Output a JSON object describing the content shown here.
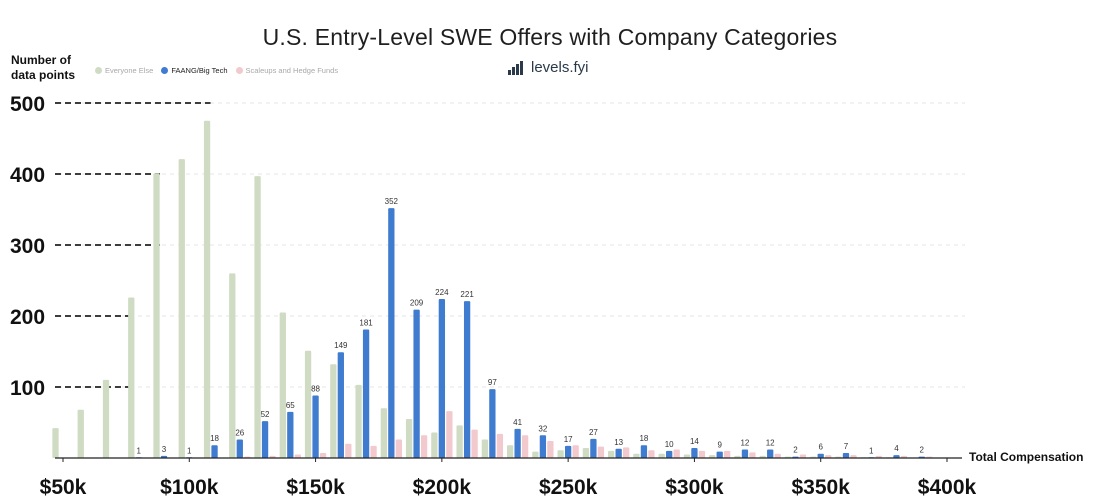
{
  "chart_data": {
    "type": "bar",
    "title": "U.S. Entry-Level SWE Offers with Company Categories",
    "ylabel": "Number of data points",
    "xlabel": "Total Compensation",
    "watermark": "levels.fyi",
    "ylim": [
      0,
      510
    ],
    "xlim": [
      50000,
      402000
    ],
    "bin_width": 10000,
    "y_ticks": [
      100,
      200,
      300,
      400,
      500
    ],
    "y_tick_labels": [
      "100",
      "200",
      "300",
      "400",
      "500"
    ],
    "x_ticks": [
      50000,
      100000,
      150000,
      200000,
      250000,
      300000,
      350000,
      400000
    ],
    "x_tick_labels": [
      "$50k",
      "$100k",
      "$150k",
      "$200k",
      "$250k",
      "$300k",
      "$350k",
      "$400k"
    ],
    "bins": [
      50000,
      60000,
      70000,
      80000,
      90000,
      100000,
      110000,
      120000,
      130000,
      140000,
      150000,
      160000,
      170000,
      180000,
      190000,
      200000,
      210000,
      220000,
      230000,
      240000,
      250000,
      260000,
      270000,
      280000,
      290000,
      300000,
      310000,
      320000,
      330000,
      340000,
      350000,
      360000,
      370000,
      380000,
      390000
    ],
    "series": [
      {
        "name": "Everyone Else",
        "color": "#cfdcc3",
        "values": [
          42,
          68,
          110,
          226,
          401,
          421,
          475,
          260,
          397,
          205,
          151,
          132,
          103,
          70,
          55,
          36,
          46,
          26,
          18,
          9,
          11,
          14,
          10,
          6,
          6,
          5,
          4,
          3,
          3,
          2,
          2,
          2,
          1,
          1,
          0
        ],
        "labels": [
          null,
          null,
          null,
          null,
          null,
          null,
          null,
          null,
          null,
          null,
          null,
          null,
          null,
          null,
          null,
          null,
          null,
          null,
          null,
          null,
          null,
          null,
          null,
          null,
          null,
          null,
          null,
          null,
          null,
          null,
          null,
          null,
          null,
          null,
          null
        ]
      },
      {
        "name": "FAANG/Big Tech",
        "color": "#3f7bcf",
        "values": [
          0,
          0,
          0,
          1,
          3,
          1,
          18,
          26,
          52,
          65,
          88,
          149,
          181,
          352,
          209,
          224,
          221,
          97,
          41,
          32,
          17,
          27,
          13,
          18,
          10,
          14,
          9,
          12,
          12,
          2,
          6,
          7,
          1,
          4,
          2
        ],
        "labels": [
          "",
          "",
          "",
          "1",
          "3",
          "1",
          "18",
          "26",
          "52",
          "65",
          "88",
          "149",
          "181",
          "352",
          "209",
          "224",
          "221",
          "97",
          "41",
          "32",
          "17",
          "27",
          "13",
          "18",
          "10",
          "14",
          "9",
          "12",
          "12",
          "2",
          "6",
          "7",
          "1",
          "4",
          "2"
        ]
      },
      {
        "name": "Scaleups and Hedge Funds",
        "color": "#f2c9cd",
        "values": [
          0,
          0,
          0,
          0,
          0,
          0,
          0,
          2,
          3,
          5,
          7,
          20,
          17,
          26,
          32,
          66,
          40,
          34,
          32,
          24,
          18,
          16,
          15,
          11,
          12,
          10,
          10,
          8,
          6,
          5,
          4,
          4,
          3,
          3,
          2
        ],
        "labels": [
          null,
          null,
          null,
          null,
          null,
          null,
          null,
          null,
          null,
          null,
          null,
          null,
          null,
          null,
          null,
          null,
          null,
          null,
          null,
          null,
          null,
          null,
          null,
          null,
          null,
          null,
          null,
          null,
          null,
          null,
          null,
          null,
          null,
          null,
          null
        ]
      }
    ],
    "reference_lines": [
      {
        "y": 100,
        "x_end": 80000
      },
      {
        "y": 200,
        "x_end": 80000
      },
      {
        "y": 300,
        "x_end": 90000
      },
      {
        "y": 400,
        "x_end": 90000
      },
      {
        "y": 500,
        "x_end": 110000
      }
    ],
    "grid": true
  }
}
